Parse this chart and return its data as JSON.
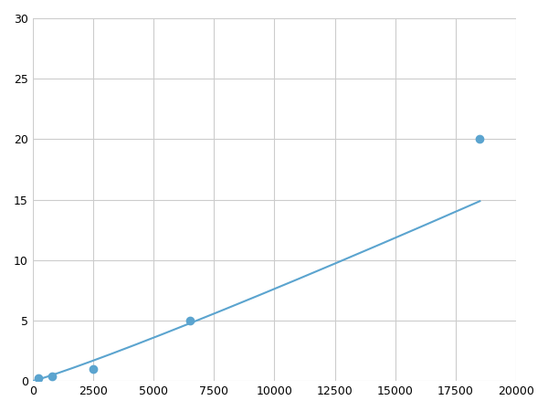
{
  "x_points": [
    250,
    800,
    2500,
    6500,
    18500
  ],
  "y_points": [
    0.2,
    0.4,
    1.0,
    5.0,
    20.0
  ],
  "xlim": [
    0,
    20000
  ],
  "ylim": [
    0,
    30
  ],
  "xticks": [
    0,
    2500,
    5000,
    7500,
    10000,
    12500,
    15000,
    17500,
    20000
  ],
  "yticks": [
    0,
    5,
    10,
    15,
    20,
    25,
    30
  ],
  "line_color": "#5ba4cf",
  "marker_color": "#5ba4cf",
  "marker_size": 6,
  "line_width": 1.5,
  "background_color": "#ffffff",
  "grid_color": "#cccccc"
}
